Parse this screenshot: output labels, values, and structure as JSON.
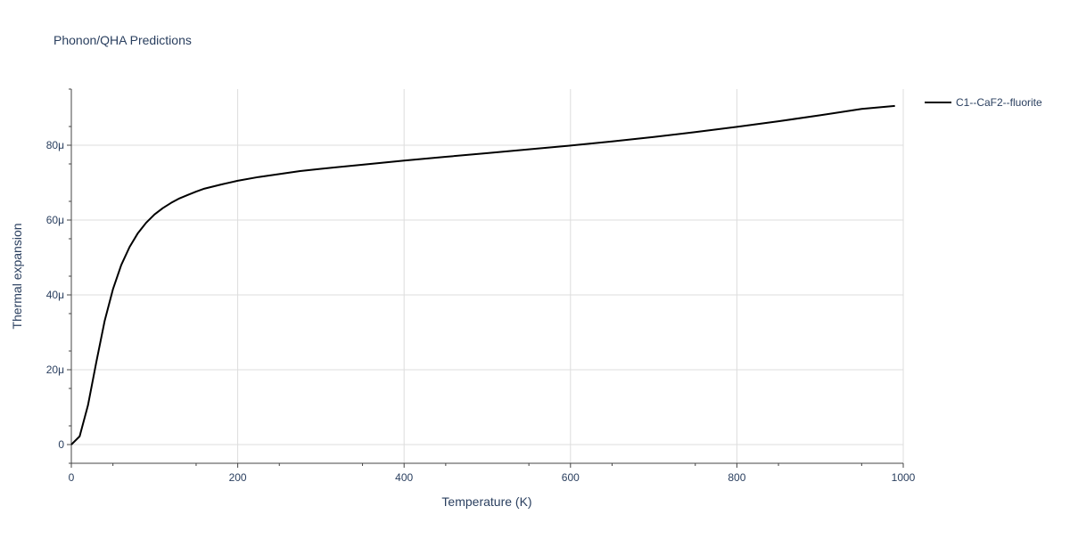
{
  "chart_data": {
    "type": "line",
    "title": "Phonon/QHA Predictions",
    "xlabel": "Temperature (K)",
    "ylabel": "Thermal expansion",
    "xlim": [
      0,
      1000
    ],
    "ylim": [
      -5e-06,
      9.5e-05
    ],
    "x_ticks": [
      0,
      200,
      400,
      600,
      800,
      1000
    ],
    "x_tick_labels": [
      "0",
      "200",
      "400",
      "600",
      "800",
      "1000"
    ],
    "y_ticks": [
      0,
      2e-05,
      4e-05,
      6e-05,
      8e-05
    ],
    "y_tick_labels": [
      "0",
      "20μ",
      "40μ",
      "60μ",
      "80μ"
    ],
    "grid": true,
    "legend_position": "top-right",
    "series": [
      {
        "name": "C1--CaF2--fluorite",
        "color": "#000000",
        "x": [
          0,
          10,
          20,
          30,
          40,
          50,
          60,
          70,
          80,
          90,
          100,
          110,
          120,
          130,
          140,
          150,
          160,
          180,
          200,
          225,
          250,
          275,
          300,
          350,
          400,
          450,
          500,
          550,
          600,
          650,
          700,
          750,
          800,
          850,
          900,
          950,
          990
        ],
        "y": [
          0,
          2.2e-06,
          1.05e-05,
          2.2e-05,
          3.3e-05,
          4.15e-05,
          4.8e-05,
          5.28e-05,
          5.65e-05,
          5.93e-05,
          6.15e-05,
          6.32e-05,
          6.46e-05,
          6.58e-05,
          6.67e-05,
          6.76e-05,
          6.84e-05,
          6.95e-05,
          7.05e-05,
          7.15e-05,
          7.23e-05,
          7.31e-05,
          7.37e-05,
          7.48e-05,
          7.59e-05,
          7.69e-05,
          7.79e-05,
          7.89e-05,
          7.99e-05,
          8.1e-05,
          8.22e-05,
          8.35e-05,
          8.49e-05,
          8.64e-05,
          8.8e-05,
          8.97e-05,
          9.05e-05
        ]
      }
    ]
  }
}
